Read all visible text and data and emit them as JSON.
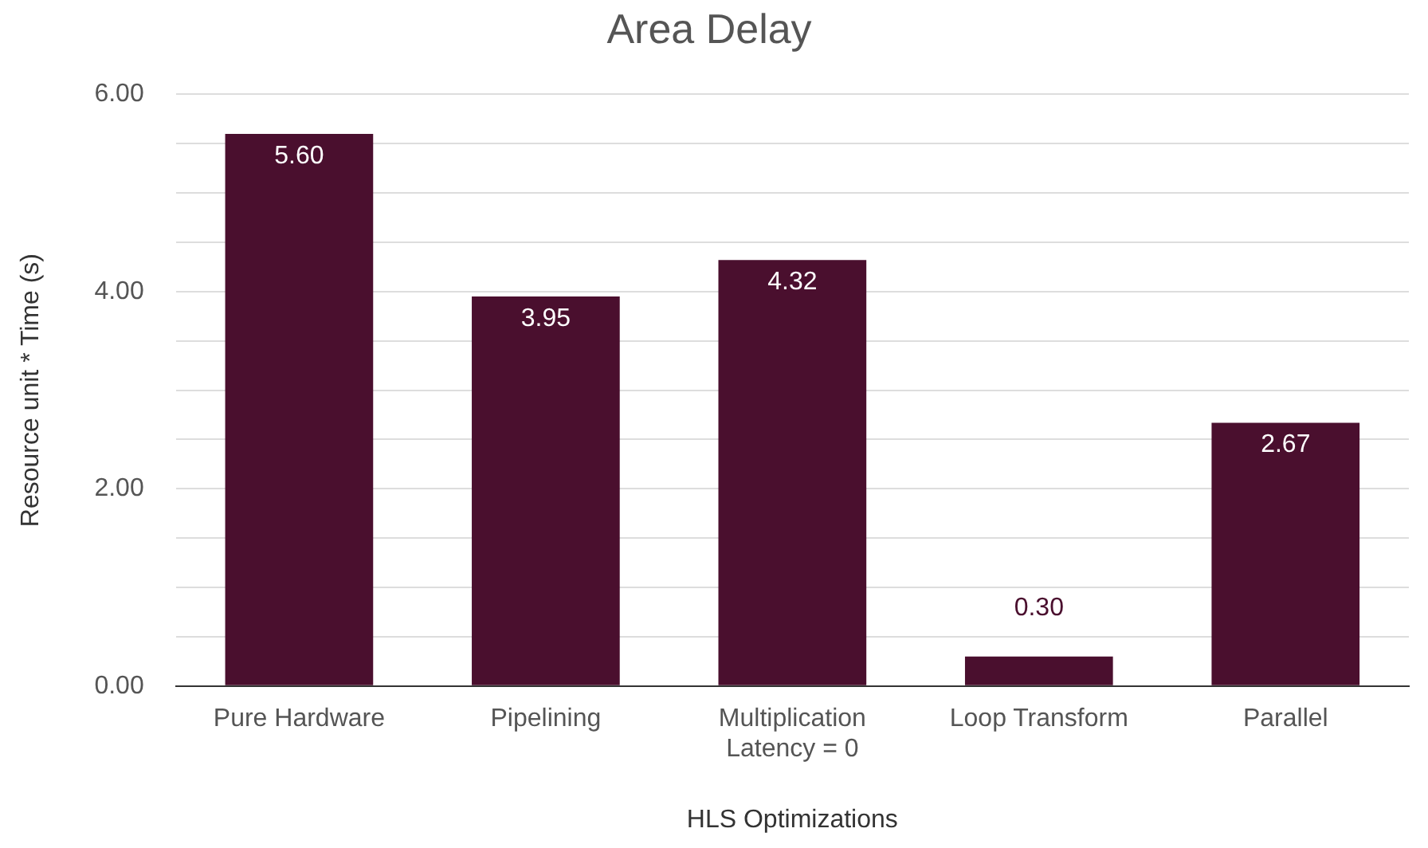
{
  "chart_data": {
    "type": "bar",
    "title": "Area Delay",
    "xlabel": "HLS Optimizations",
    "ylabel": "Resource unit * Time (s)",
    "categories": [
      "Pure Hardware",
      "Pipelining",
      "Multiplication Latency = 0",
      "Loop Transform",
      "Parallel"
    ],
    "values": [
      5.6,
      3.95,
      4.32,
      0.3,
      2.67
    ],
    "color": "#4a0f2e",
    "ylim": [
      0,
      6
    ],
    "yticks": [
      {
        "value": 0,
        "label": "0.00"
      },
      {
        "value": 0.5,
        "label": null
      },
      {
        "value": 1,
        "label": null
      },
      {
        "value": 1.5,
        "label": null
      },
      {
        "value": 2,
        "label": "2.00"
      },
      {
        "value": 2.5,
        "label": null
      },
      {
        "value": 3,
        "label": null
      },
      {
        "value": 3.5,
        "label": null
      },
      {
        "value": 4,
        "label": "4.00"
      },
      {
        "value": 4.5,
        "label": null
      },
      {
        "value": 5,
        "label": null
      },
      {
        "value": 5.5,
        "label": null
      },
      {
        "value": 6,
        "label": "6.00"
      }
    ],
    "value_labels": [
      "5.60",
      "3.95",
      "4.32",
      "0.30",
      "2.67"
    ],
    "grid": true,
    "legend": false
  }
}
